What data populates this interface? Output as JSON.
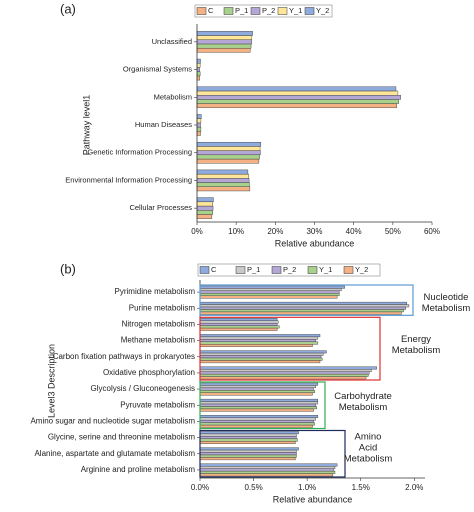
{
  "chart_data": [
    {
      "type": "hbar",
      "panel_label": "(a)",
      "xlabel": "Relative abundance",
      "ylabel": "Pathway level1",
      "categories": [
        "Unclassified",
        "Organismal Systems",
        "Metabolism",
        "Human Diseases",
        "Genetic Information Processing",
        "Environmental Information Processing",
        "Cellular Processes"
      ],
      "series": [
        {
          "name": "C",
          "color": "#f4b183",
          "values": [
            13.6,
            0.7,
            51.0,
            0.9,
            15.8,
            13.5,
            3.8
          ]
        },
        {
          "name": "P_1",
          "color": "#a9d18e",
          "values": [
            13.8,
            0.8,
            51.5,
            1.0,
            16.0,
            13.4,
            4.0
          ]
        },
        {
          "name": "P_2",
          "color": "#b4a7d6",
          "values": [
            14.0,
            0.7,
            52.0,
            0.9,
            16.2,
            13.3,
            4.1
          ]
        },
        {
          "name": "Y_1",
          "color": "#ffe699",
          "values": [
            13.9,
            0.8,
            51.3,
            1.0,
            16.1,
            13.2,
            4.0
          ]
        },
        {
          "name": "Y_2",
          "color": "#8faadc",
          "values": [
            14.2,
            0.9,
            50.8,
            1.1,
            16.3,
            13.0,
            4.2
          ]
        }
      ],
      "xlim": [
        0,
        60
      ],
      "xticks": [
        {
          "value": 0,
          "label": "0%"
        },
        {
          "value": 10,
          "label": "10%"
        },
        {
          "value": 20,
          "label": "20%"
        },
        {
          "value": 30,
          "label": "30%"
        },
        {
          "value": 40,
          "label": "40%"
        },
        {
          "value": 50,
          "label": "50%"
        },
        {
          "value": 60,
          "label": "60%"
        }
      ]
    },
    {
      "type": "hbar",
      "panel_label": "(b)",
      "xlabel": "Relative abundance",
      "ylabel": "Level3 Description",
      "categories": [
        "Pyrimidine metabolism",
        "Purine metabolism",
        "Nitrogen metabolism",
        "Methane metabolism",
        "Carbon fixation pathways in prokaryotes",
        "Oxidative phosphorylation",
        "Glycolysis / Gluconeogenesis",
        "Pyruvate metabolism",
        "Amino sugar and nucleotide sugar metabolism",
        "Glycine, serine and threonine metabolism",
        "Alanine, aspartate and glutamate metabolism",
        "Arginine and proline metabolism"
      ],
      "series": [
        {
          "name": "C",
          "color": "#8faadc",
          "values": [
            1.35,
            1.93,
            0.72,
            1.12,
            1.18,
            1.65,
            1.1,
            1.1,
            1.1,
            0.92,
            0.92,
            1.28
          ]
        },
        {
          "name": "P_1",
          "color": "#c9c9c9",
          "values": [
            1.32,
            1.95,
            0.73,
            1.1,
            1.15,
            1.6,
            1.08,
            1.1,
            1.08,
            0.9,
            0.9,
            1.26
          ]
        },
        {
          "name": "P_2",
          "color": "#b4a7d6",
          "values": [
            1.3,
            1.92,
            0.72,
            1.08,
            1.13,
            1.58,
            1.06,
            1.08,
            1.06,
            0.9,
            0.9,
            1.25
          ]
        },
        {
          "name": "Y_1",
          "color": "#a9d18e",
          "values": [
            1.3,
            1.9,
            0.74,
            1.1,
            1.14,
            1.57,
            1.07,
            1.09,
            1.07,
            0.91,
            0.9,
            1.26
          ]
        },
        {
          "name": "Y_2",
          "color": "#f4b183",
          "values": [
            1.28,
            1.88,
            0.72,
            1.05,
            1.12,
            1.55,
            1.05,
            1.06,
            1.05,
            0.89,
            0.89,
            1.24
          ]
        }
      ],
      "xlim": [
        0,
        2.1
      ],
      "xticks": [
        {
          "value": 0,
          "label": "0.0%"
        },
        {
          "value": 0.5,
          "label": "0.5%"
        },
        {
          "value": 1.0,
          "label": "1.0%"
        },
        {
          "value": 1.5,
          "label": "1.5%"
        },
        {
          "value": 2.0,
          "label": "2.0%"
        }
      ],
      "annotations": [
        {
          "lines": [
            "Nucleotide",
            "Metabolism"
          ],
          "color": "#5b9bd5"
        },
        {
          "lines": [
            "Energy",
            "Metabolism"
          ],
          "color": "#e03030"
        },
        {
          "lines": [
            "Carbohydrate",
            "Metabolism"
          ],
          "color": "#2eb050"
        },
        {
          "lines": [
            "Amino",
            "Acid",
            "Metabolism"
          ],
          "color": "#1f2a5a"
        }
      ]
    }
  ]
}
